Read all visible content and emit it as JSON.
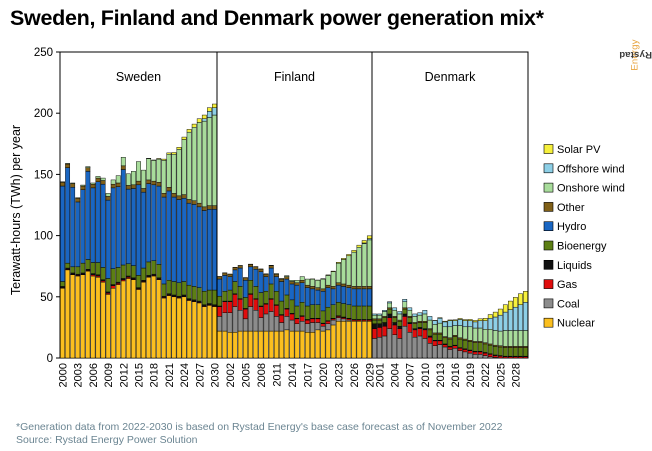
{
  "page": {
    "title": "Sweden, Finland and Denmark power generation mix*",
    "brand_strong": "Rystad",
    "brand_light": "Energy",
    "footnote_1": "*Generation data from 2022-2030 is based on Rystad Energy's base case forecast as of November 2022",
    "footnote_2": "Source: Rystad Energy Power Solution"
  },
  "chart_data": {
    "type": "bar",
    "stacked": true,
    "title": "Sweden, Finland and Denmark power generation mix*",
    "ylabel": "Terawatt-hours (TWh) per year",
    "xlabel": "",
    "ylim": [
      0,
      250
    ],
    "yticks": [
      0,
      50,
      100,
      150,
      200,
      250
    ],
    "grid": false,
    "legend_position": "right",
    "series_order": [
      "Nuclear",
      "Coal",
      "Gas",
      "Liquids",
      "Bioenergy",
      "Hydro",
      "Other",
      "Onshore wind",
      "Offshore wind",
      "Solar PV"
    ],
    "legend_order": [
      "Solar PV",
      "Offshore wind",
      "Onshore wind",
      "Other",
      "Hydro",
      "Bioenergy",
      "Liquids",
      "Gas",
      "Coal",
      "Nuclear"
    ],
    "colors": {
      "Nuclear": "#fbbf1f",
      "Coal": "#8c8c8c",
      "Gas": "#e00d0d",
      "Liquids": "#111111",
      "Bioenergy": "#5d7f14",
      "Hydro": "#1a66c2",
      "Other": "#806018",
      "Onshore wind": "#a8dc9b",
      "Offshore wind": "#8dcfe6",
      "Solar PV": "#f6f03c"
    },
    "panels": [
      {
        "name": "Sweden",
        "years": [
          2000,
          2001,
          2002,
          2003,
          2004,
          2005,
          2006,
          2007,
          2008,
          2009,
          2010,
          2011,
          2012,
          2013,
          2014,
          2015,
          2016,
          2017,
          2018,
          2019,
          2020,
          2021,
          2022,
          2023,
          2024,
          2025,
          2026,
          2027,
          2028,
          2029,
          2030
        ],
        "tick_labels": [
          "2000",
          "2003",
          "2006",
          "2009",
          "2012",
          "2015",
          "2018",
          "2021",
          "2024",
          "2027",
          "2030"
        ],
        "series": {
          "Nuclear": [
            57,
            72,
            68,
            67,
            68,
            71,
            67,
            66,
            62,
            52,
            57,
            60,
            63,
            65,
            64,
            56,
            62,
            66,
            67,
            64,
            49,
            51,
            50,
            49,
            50,
            47,
            46,
            45,
            42,
            43,
            42
          ],
          "Coal": [
            0,
            0,
            0,
            0,
            0,
            0,
            0,
            0,
            0,
            0,
            0,
            0,
            0,
            0,
            0,
            0,
            0,
            0,
            0,
            0,
            0,
            0,
            0,
            0,
            0,
            0,
            0,
            0,
            0,
            0,
            0
          ],
          "Gas": [
            0.5,
            0.5,
            0.5,
            0.5,
            0.5,
            0.5,
            1,
            1,
            1,
            1,
            2,
            1,
            1,
            1,
            0.5,
            0.5,
            0.5,
            0.5,
            0.5,
            0.5,
            0.5,
            0.5,
            0.5,
            0.5,
            0.5,
            0.5,
            0.5,
            0.5,
            0.5,
            0.5,
            0.5
          ],
          "Liquids": [
            1,
            1,
            1,
            1,
            1,
            1,
            1,
            1,
            1,
            1,
            1,
            1,
            1,
            1,
            1,
            1,
            1,
            1,
            1,
            1,
            1,
            1,
            1,
            1,
            1,
            1,
            1,
            1,
            1,
            1,
            1
          ],
          "Bioenergy": [
            4,
            4,
            5,
            6,
            8,
            8,
            9,
            10,
            10,
            11,
            13,
            12,
            11,
            10,
            10,
            10,
            10,
            11,
            11,
            11,
            10,
            11,
            11,
            11,
            11,
            11,
            11,
            11,
            11,
            11,
            12
          ],
          "Hydro": [
            78,
            78,
            65,
            53,
            60,
            72,
            61,
            66,
            68,
            64,
            66,
            66,
            78,
            61,
            63,
            74,
            62,
            64,
            62,
            64,
            71,
            73,
            69,
            68,
            68,
            67,
            67,
            66,
            66,
            66,
            66
          ],
          "Other": [
            3,
            3,
            3,
            3,
            3,
            3,
            3,
            3,
            3,
            3,
            3,
            3,
            3,
            3,
            3,
            3,
            3,
            3,
            3,
            3,
            3,
            3,
            3,
            3,
            3,
            3,
            3,
            3,
            3,
            3,
            3
          ],
          "Onshore wind": [
            0.5,
            0.5,
            0.5,
            0.5,
            0.8,
            0.9,
            1,
            1.4,
            2,
            2.5,
            3.5,
            6,
            7,
            9.5,
            11,
            16,
            15,
            17.5,
            17,
            19,
            27,
            27,
            32,
            38,
            45,
            55,
            60,
            66,
            70,
            72,
            74
          ],
          "Offshore wind": [
            0,
            0,
            0,
            0,
            0,
            0,
            0,
            0,
            0,
            0,
            0,
            0,
            0,
            0,
            0,
            0,
            0,
            0,
            0,
            0,
            0,
            0,
            0,
            0,
            0,
            0,
            0,
            0,
            2,
            5,
            6
          ],
          "Solar PV": [
            0,
            0,
            0,
            0,
            0,
            0,
            0,
            0,
            0,
            0,
            0,
            0,
            0,
            0,
            0,
            0,
            0,
            0.2,
            0.3,
            0.5,
            1,
            1.1,
            1.4,
            1.7,
            2,
            2.3,
            2.6,
            3,
            3,
            3,
            3
          ]
        }
      },
      {
        "name": "Finland",
        "years": [
          2000,
          2001,
          2002,
          2003,
          2004,
          2005,
          2006,
          2007,
          2008,
          2009,
          2010,
          2011,
          2012,
          2013,
          2014,
          2015,
          2016,
          2017,
          2018,
          2019,
          2020,
          2021,
          2022,
          2023,
          2024,
          2025,
          2026,
          2027,
          2028,
          2029
        ],
        "tick_labels": [
          "2002",
          "2005",
          "2008",
          "2011",
          "2014",
          "2017",
          "2020",
          "2023",
          "2026",
          "2029"
        ],
        "series": {
          "Nuclear": [
            22,
            22,
            21,
            21,
            22,
            22,
            22,
            22,
            22,
            22,
            22,
            22,
            22,
            23,
            22,
            22,
            22,
            21,
            21,
            23,
            22,
            23,
            27,
            30,
            30,
            30,
            30,
            30,
            30,
            30
          ],
          "Coal": [
            12,
            15,
            16,
            21,
            17,
            10,
            20,
            17,
            11,
            14,
            16,
            12,
            7,
            11,
            9,
            6,
            8,
            7,
            8,
            6,
            4,
            5,
            4,
            3,
            2,
            1,
            0,
            0,
            0,
            0
          ],
          "Gas": [
            8,
            9,
            9,
            10,
            9,
            8,
            10,
            9,
            9,
            8,
            10,
            9,
            6,
            6,
            5,
            4,
            4,
            3,
            3,
            3,
            2,
            2,
            1,
            1,
            1,
            1,
            1,
            1,
            1,
            1
          ],
          "Liquids": [
            0.5,
            0.5,
            0.5,
            0.5,
            0.5,
            0.5,
            0.5,
            0.5,
            0.5,
            0.5,
            0.5,
            0.5,
            0.5,
            0.5,
            0.5,
            0.5,
            0.5,
            0.5,
            0.5,
            0.5,
            0.5,
            0.5,
            0.5,
            0.5,
            0.5,
            0.5,
            0.5,
            0.5,
            0.5,
            0.5
          ],
          "Bioenergy": [
            8,
            8,
            9,
            10,
            10,
            9,
            11,
            10,
            11,
            10,
            12,
            11,
            11,
            11,
            11,
            10,
            11,
            11,
            11,
            11,
            10,
            11,
            11,
            11,
            11,
            11,
            11,
            11,
            11,
            11
          ],
          "Hydro": [
            14,
            13,
            11,
            9.5,
            15,
            14,
            11,
            14,
            17,
            12,
            13,
            12,
            16,
            13,
            13,
            17,
            16,
            15,
            13,
            12,
            16,
            16,
            13,
            14,
            14,
            14,
            14,
            14,
            14,
            14
          ],
          "Other": [
            2,
            2,
            2,
            2,
            2,
            2,
            2,
            2,
            2,
            2,
            2,
            2,
            2,
            2,
            2,
            2,
            2,
            2,
            2,
            2,
            2,
            2,
            2,
            2,
            2,
            2,
            2,
            2,
            2,
            2
          ],
          "Onshore wind": [
            0.1,
            0.1,
            0.1,
            0.1,
            0.1,
            0.2,
            0.2,
            0.2,
            0.3,
            0.3,
            0.3,
            0.5,
            0.5,
            0.8,
            1,
            2,
            3,
            5,
            6,
            6,
            8,
            8,
            12,
            16,
            20,
            24,
            28,
            32,
            35,
            38
          ],
          "Offshore wind": [
            0,
            0,
            0,
            0,
            0,
            0,
            0,
            0,
            0,
            0,
            0,
            0,
            0,
            0,
            0,
            0,
            0,
            0,
            0,
            0,
            0,
            0,
            0,
            0,
            0,
            0,
            0,
            0,
            0.5,
            1
          ],
          "Solar PV": [
            0,
            0,
            0,
            0,
            0,
            0,
            0,
            0,
            0,
            0,
            0,
            0,
            0,
            0,
            0,
            0,
            0,
            0,
            0.1,
            0.2,
            0.3,
            0.4,
            0.5,
            0.7,
            0.9,
            1.1,
            1.4,
            1.7,
            2,
            2.3
          ]
        }
      },
      {
        "name": "Denmark",
        "years": [
          2000,
          2001,
          2002,
          2003,
          2004,
          2005,
          2006,
          2007,
          2008,
          2009,
          2010,
          2011,
          2012,
          2013,
          2014,
          2015,
          2016,
          2017,
          2018,
          2019,
          2020,
          2021,
          2022,
          2023,
          2024,
          2025,
          2026,
          2027,
          2028,
          2029,
          2030
        ],
        "tick_labels": [
          "2001",
          "2004",
          "2007",
          "2010",
          "2013",
          "2016",
          "2019",
          "2022",
          "2025",
          "2028"
        ],
        "series": {
          "Nuclear": [
            0,
            0,
            0,
            0,
            0,
            0,
            0,
            0,
            0,
            0,
            0,
            0,
            0,
            0,
            0,
            0,
            0,
            0,
            0,
            0,
            0,
            0,
            0,
            0,
            0,
            0,
            0,
            0,
            0,
            0,
            0
          ],
          "Coal": [
            16,
            17,
            18,
            24,
            19,
            16,
            26,
            21,
            17,
            18,
            16,
            12,
            10,
            11,
            9,
            7,
            8,
            6,
            5,
            4,
            3,
            3,
            2,
            1,
            0.5,
            0,
            0,
            0,
            0,
            0,
            0
          ],
          "Gas": [
            8,
            8,
            8,
            9,
            8,
            8,
            8,
            7,
            6,
            6,
            7,
            5,
            4,
            3,
            2,
            2,
            2,
            2,
            2,
            2,
            2,
            2,
            2,
            2,
            1.5,
            1.5,
            1,
            1,
            1,
            1,
            1
          ],
          "Liquids": [
            4,
            3,
            3,
            3,
            2,
            2,
            2,
            1,
            1,
            1,
            1,
            1,
            0.5,
            0.5,
            0.5,
            0.5,
            0.5,
            0.5,
            0.5,
            0.5,
            0.5,
            0.5,
            0.5,
            0.5,
            0.5,
            0.5,
            0.5,
            0.5,
            0.5,
            0.5,
            0.5
          ],
          "Bioenergy": [
            3,
            3,
            4,
            4,
            4,
            4,
            4,
            4,
            4,
            4,
            5,
            5,
            5,
            5,
            5,
            6,
            7,
            7,
            7,
            7,
            7,
            7,
            7,
            7,
            7,
            7,
            7,
            7,
            7,
            7,
            7
          ],
          "Hydro": [
            0,
            0,
            0,
            0,
            0,
            0,
            0,
            0,
            0,
            0,
            0,
            0,
            0,
            0,
            0,
            0,
            0,
            0,
            0,
            0,
            0,
            0,
            0,
            0,
            0,
            0,
            0,
            0,
            0,
            0,
            0
          ],
          "Other": [
            1,
            1,
            1,
            1,
            1,
            1,
            1,
            1,
            1,
            1,
            1,
            1,
            1,
            1,
            1,
            1,
            1,
            1,
            1,
            1,
            1,
            1,
            1,
            1,
            1,
            1,
            1,
            1,
            1,
            1,
            1
          ],
          "Onshore wind": [
            3,
            3,
            4,
            4,
            5,
            5,
            5,
            5,
            5,
            5,
            6,
            7,
            7,
            8,
            8,
            9,
            8,
            10,
            10,
            11,
            11,
            11,
            11,
            12,
            12,
            12,
            13,
            13,
            13,
            13,
            13
          ],
          "Offshore wind": [
            1,
            1,
            1,
            1,
            2,
            2,
            2,
            2,
            2,
            2,
            3,
            3,
            3,
            4,
            4,
            5,
            4,
            5,
            5,
            5,
            5,
            6,
            7,
            9,
            11,
            13,
            15,
            17,
            19,
            21,
            23
          ],
          "Solar PV": [
            0,
            0,
            0,
            0,
            0,
            0,
            0,
            0,
            0,
            0,
            0,
            0,
            0.2,
            0.5,
            0.6,
            0.6,
            0.7,
            0.8,
            0.9,
            1,
            1.2,
            1.5,
            2,
            3,
            4,
            5,
            6,
            7,
            8,
            9,
            9
          ]
        }
      }
    ]
  }
}
